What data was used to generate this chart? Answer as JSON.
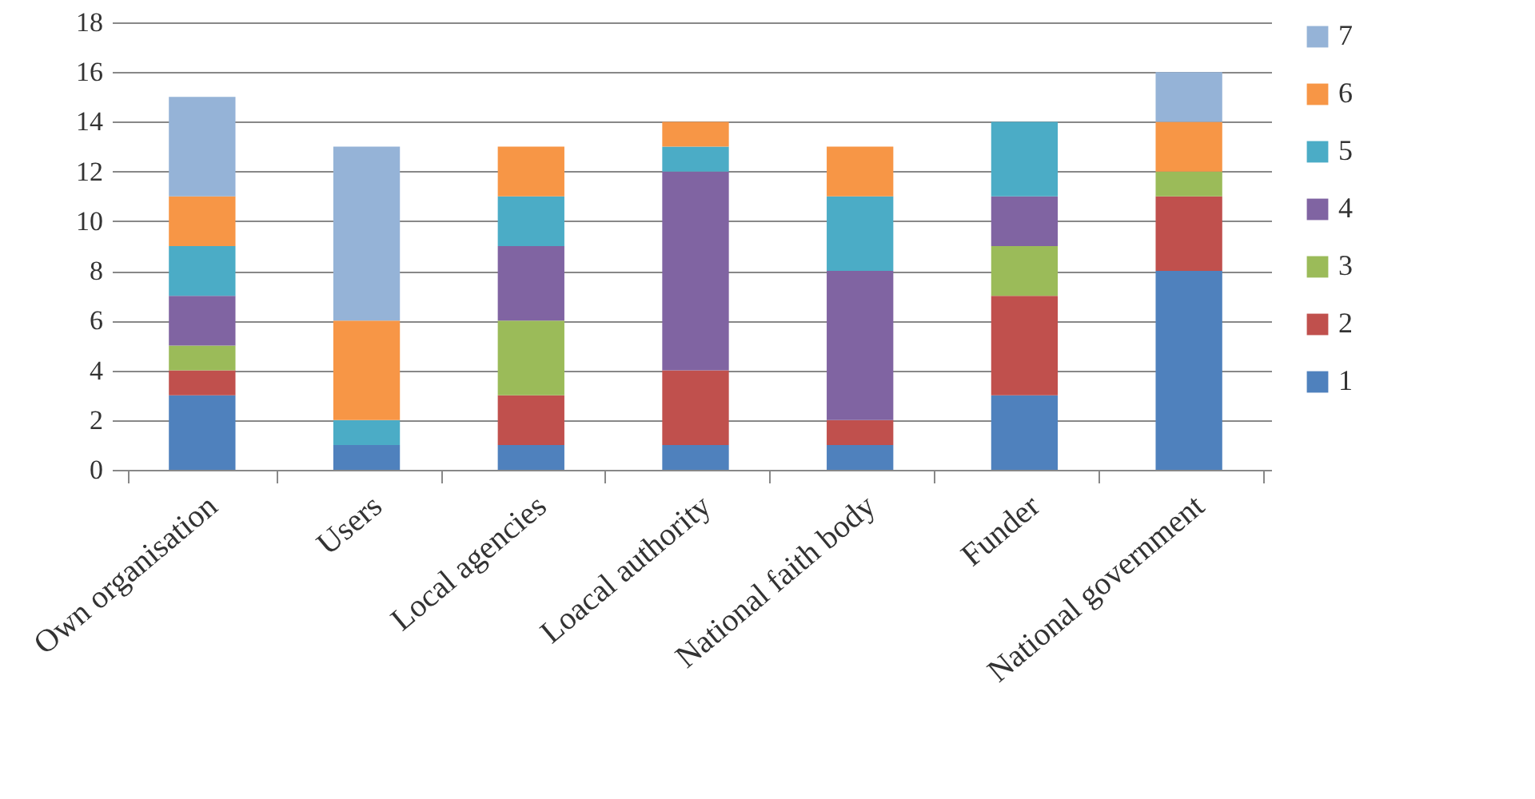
{
  "chart_data": {
    "type": "bar",
    "stacked": true,
    "categories": [
      "Own organisation",
      "Users",
      "Local agencies",
      "Loacal authority",
      "National faith body",
      "Funder",
      "National government"
    ],
    "series": [
      {
        "name": "1",
        "color": "#4f81bd",
        "values": [
          3,
          1,
          1,
          1,
          1,
          3,
          8
        ]
      },
      {
        "name": "2",
        "color": "#c0504d",
        "values": [
          1,
          0,
          2,
          3,
          1,
          4,
          3
        ]
      },
      {
        "name": "3",
        "color": "#9bbb59",
        "values": [
          1,
          0,
          3,
          0,
          0,
          2,
          1
        ]
      },
      {
        "name": "4",
        "color": "#8064a2",
        "values": [
          2,
          0,
          3,
          8,
          6,
          2,
          0
        ]
      },
      {
        "name": "5",
        "color": "#4bacc6",
        "values": [
          2,
          1,
          2,
          1,
          3,
          3,
          0
        ]
      },
      {
        "name": "6",
        "color": "#f79646",
        "values": [
          2,
          4,
          2,
          1,
          2,
          0,
          2
        ]
      },
      {
        "name": "7",
        "color": "#95b3d7",
        "values": [
          4,
          7,
          0,
          0,
          0,
          0,
          2
        ]
      }
    ],
    "ylim": [
      0,
      18
    ],
    "yticks": [
      0,
      2,
      4,
      6,
      8,
      10,
      12,
      14,
      16,
      18
    ],
    "grid": "y",
    "legend": "right"
  }
}
